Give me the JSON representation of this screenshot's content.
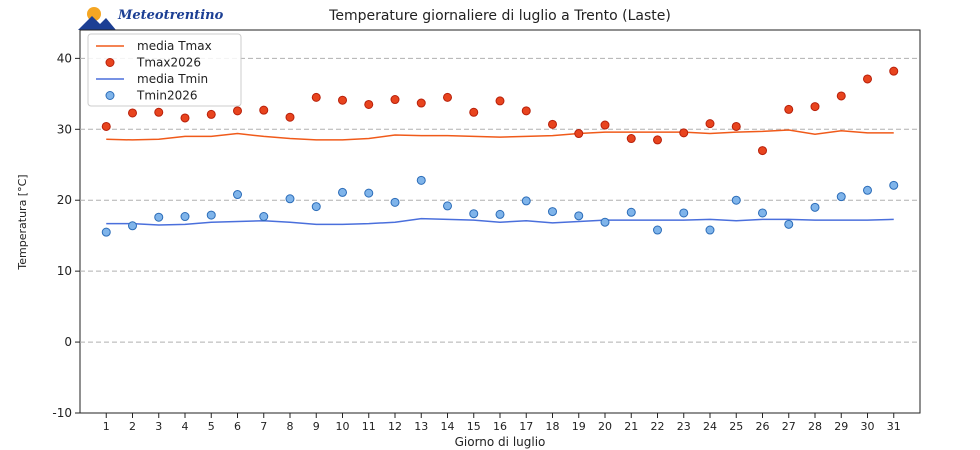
{
  "logo": {
    "text": "Meteotrentino"
  },
  "chart_data": {
    "type": "line",
    "title": "Temperature giornaliere di luglio a Trento (Laste)",
    "xlabel": "Giorno di luglio",
    "ylabel": "Temperatura [°C]",
    "xlim": [
      0,
      32
    ],
    "ylim": [
      -10,
      44
    ],
    "yticks": [
      -10,
      0,
      10,
      20,
      30,
      40
    ],
    "grid": "horizontal dashed",
    "legend_position": "upper-left",
    "x": [
      1,
      2,
      3,
      4,
      5,
      6,
      7,
      8,
      9,
      10,
      11,
      12,
      13,
      14,
      15,
      16,
      17,
      18,
      19,
      20,
      21,
      22,
      23,
      24,
      25,
      26,
      27,
      28,
      29,
      30,
      31
    ],
    "series": [
      {
        "name": "media Tmax",
        "kind": "line",
        "color": "#f05a1a",
        "values": [
          28.6,
          28.5,
          28.6,
          29.0,
          29.0,
          29.4,
          29.0,
          28.7,
          28.5,
          28.5,
          28.7,
          29.2,
          29.1,
          29.1,
          29.0,
          28.9,
          29.0,
          29.1,
          29.4,
          29.6,
          29.6,
          29.6,
          29.6,
          29.4,
          29.6,
          29.7,
          29.9,
          29.3,
          29.8,
          29.5,
          29.5
        ]
      },
      {
        "name": "Tmax2026",
        "kind": "scatter",
        "color": "#e8441e",
        "edge": "#b8200a",
        "values": [
          30.4,
          32.3,
          32.4,
          31.6,
          32.1,
          32.6,
          32.7,
          31.7,
          34.5,
          34.1,
          33.5,
          34.2,
          33.7,
          34.5,
          32.4,
          34.0,
          32.6,
          30.7,
          29.4,
          30.6,
          28.7,
          28.5,
          29.5,
          30.8,
          30.4,
          27.0,
          32.8,
          33.2,
          34.7,
          37.1,
          38.2
        ]
      },
      {
        "name": "media Tmin",
        "kind": "line",
        "color": "#4a6fdc",
        "values": [
          16.7,
          16.7,
          16.5,
          16.6,
          16.9,
          17.0,
          17.1,
          16.9,
          16.6,
          16.6,
          16.7,
          16.9,
          17.4,
          17.3,
          17.2,
          16.9,
          17.1,
          16.8,
          17.0,
          17.2,
          17.2,
          17.2,
          17.2,
          17.3,
          17.1,
          17.3,
          17.3,
          17.2,
          17.2,
          17.2,
          17.3
        ]
      },
      {
        "name": "Tmin2026",
        "kind": "scatter",
        "color": "#7fb4ea",
        "edge": "#2b6cb8",
        "values": [
          15.5,
          16.4,
          17.6,
          17.7,
          17.9,
          20.8,
          17.7,
          20.2,
          19.1,
          21.1,
          21.0,
          19.7,
          22.8,
          19.2,
          18.1,
          18.0,
          19.9,
          18.4,
          17.8,
          16.9,
          18.3,
          15.8,
          18.2,
          15.8,
          20.0,
          18.2,
          16.6,
          19.0,
          20.5,
          21.4,
          22.1
        ]
      }
    ]
  }
}
